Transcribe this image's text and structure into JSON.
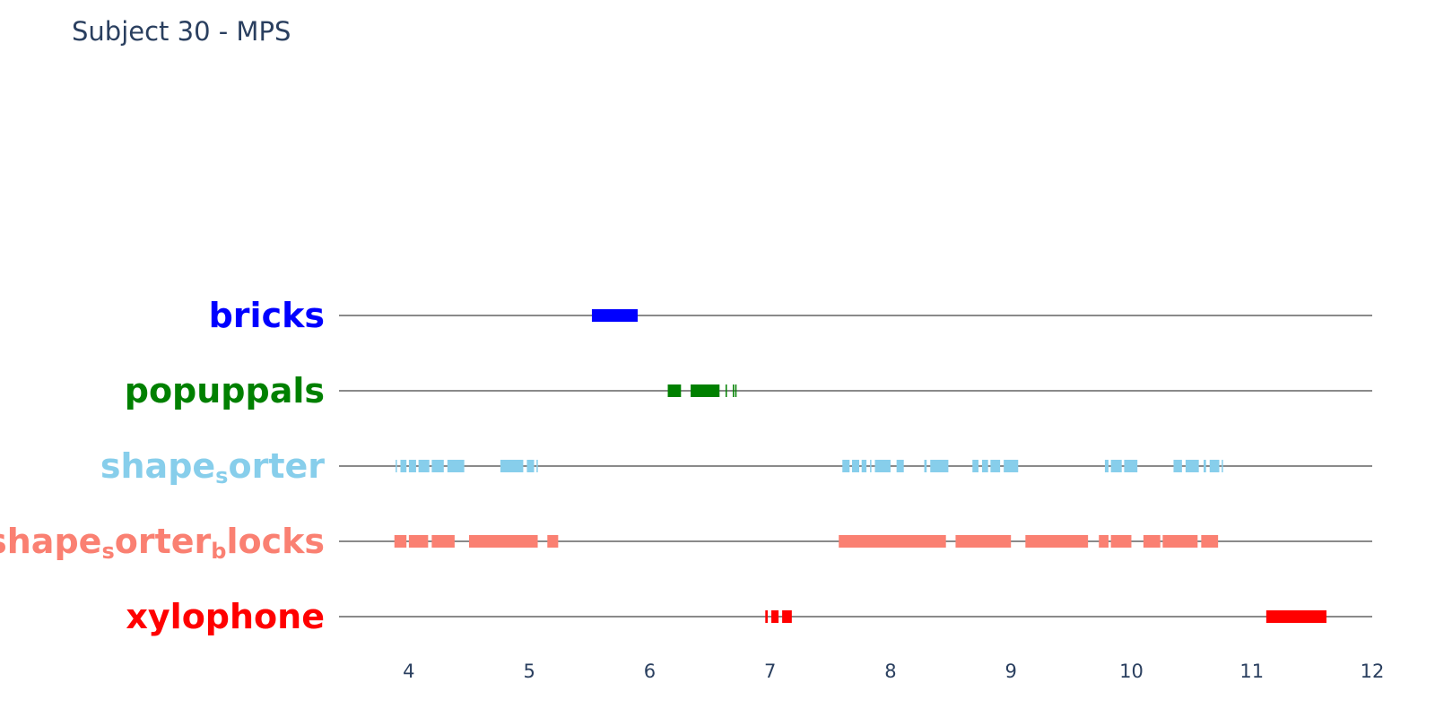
{
  "chart_data": {
    "type": "bar",
    "title": "Subject 30 - MPS",
    "xlabel": "",
    "ylabel": "",
    "xlim": [
      3.42,
      12.0
    ],
    "xticks": [
      "4",
      "5",
      "6",
      "7",
      "8",
      "9",
      "10",
      "11",
      "12"
    ],
    "grid": false,
    "legend": "none",
    "categories": [
      "bricks",
      "popuppals",
      "shape_sorter",
      "shape_sorter_blocks",
      "xylophone"
    ],
    "category_labels": [
      {
        "parts": [
          "bricks"
        ]
      },
      {
        "parts": [
          "popuppals"
        ]
      },
      {
        "parts": [
          "shape",
          "s",
          "orter"
        ]
      },
      {
        "parts": [
          "shape",
          "s",
          "orter",
          "b",
          "locks"
        ]
      },
      {
        "parts": [
          "xylophone"
        ]
      }
    ],
    "series": [
      {
        "category": "bricks",
        "color": "#0000ff",
        "intervals": [
          [
            5.52,
            5.9
          ]
        ]
      },
      {
        "category": "popuppals",
        "color": "#008000",
        "intervals": [
          [
            6.15,
            6.26
          ],
          [
            6.34,
            6.58
          ],
          [
            6.63,
            6.64
          ],
          [
            6.69,
            6.7
          ],
          [
            6.71,
            6.72
          ]
        ]
      },
      {
        "category": "shape_sorter",
        "color": "#87ceeb",
        "intervals": [
          [
            3.89,
            3.9
          ],
          [
            3.93,
            3.98
          ],
          [
            4.0,
            4.06
          ],
          [
            4.08,
            4.17
          ],
          [
            4.19,
            4.29
          ],
          [
            4.32,
            4.46
          ],
          [
            4.76,
            4.95
          ],
          [
            4.98,
            5.04
          ],
          [
            5.06,
            5.07
          ],
          [
            7.6,
            7.66
          ],
          [
            7.68,
            7.74
          ],
          [
            7.76,
            7.8
          ],
          [
            7.83,
            7.84
          ],
          [
            7.87,
            8.0
          ],
          [
            8.05,
            8.11
          ],
          [
            8.28,
            8.3
          ],
          [
            8.33,
            8.48
          ],
          [
            8.68,
            8.73
          ],
          [
            8.76,
            8.81
          ],
          [
            8.83,
            8.91
          ],
          [
            8.94,
            9.06
          ],
          [
            9.78,
            9.81
          ],
          [
            9.83,
            9.92
          ],
          [
            9.94,
            10.05
          ],
          [
            10.35,
            10.42
          ],
          [
            10.45,
            10.56
          ],
          [
            10.6,
            10.62
          ],
          [
            10.65,
            10.73
          ],
          [
            10.75,
            10.76
          ]
        ]
      },
      {
        "category": "shape_sorter_blocks",
        "color": "#fa8072",
        "intervals": [
          [
            3.88,
            3.98
          ],
          [
            4.0,
            4.16
          ],
          [
            4.19,
            4.38
          ],
          [
            4.5,
            5.07
          ],
          [
            5.15,
            5.24
          ],
          [
            7.57,
            8.46
          ],
          [
            8.54,
            9.0
          ],
          [
            9.12,
            9.64
          ],
          [
            9.73,
            9.81
          ],
          [
            9.83,
            10.0
          ],
          [
            10.1,
            10.24
          ],
          [
            10.26,
            10.55
          ],
          [
            10.58,
            10.72
          ]
        ]
      },
      {
        "category": "xylophone",
        "color": "#ff0000",
        "intervals": [
          [
            6.96,
            6.98
          ],
          [
            7.01,
            7.07
          ],
          [
            7.1,
            7.18
          ],
          [
            11.12,
            11.62
          ]
        ]
      }
    ]
  }
}
